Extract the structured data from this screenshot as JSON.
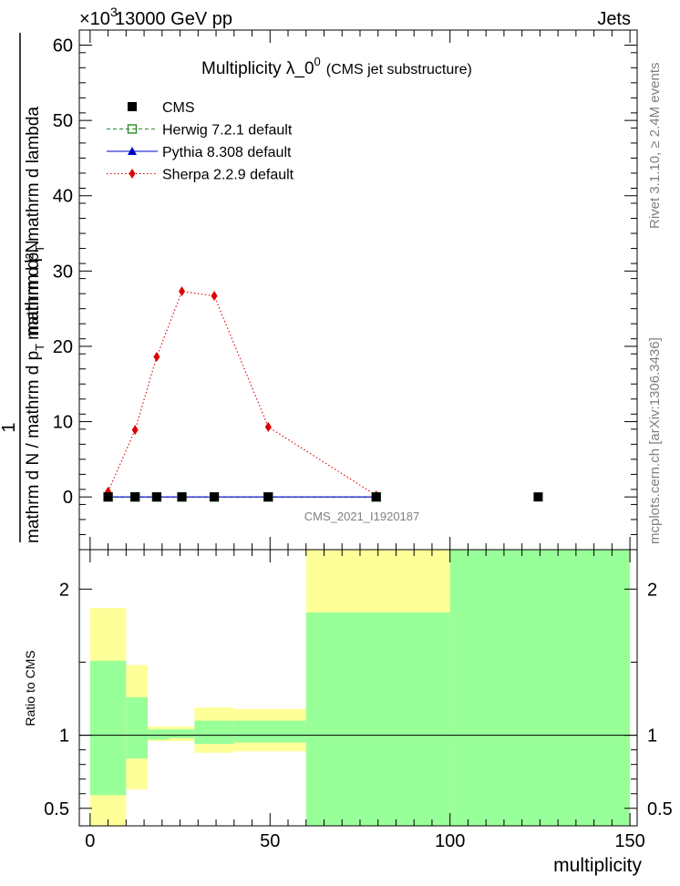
{
  "header": {
    "left": "13000 GeV pp",
    "right": "Jets",
    "exponent": "×10",
    "exponent_power": "3"
  },
  "side_labels": {
    "rivet": "Rivet 3.1.10, ≥ 2.4M events",
    "mcplots": "mcplots.cern.ch [arXiv:1306.3436]"
  },
  "watermark": "CMS_2021_I1920187",
  "chart_data": [
    {
      "type": "line",
      "title": "Multiplicity  λ_0",
      "title_sup": "0",
      "subtitle": "(CMS jet substructure)",
      "ylabel_numerator": "1",
      "ylabel_denominator": "mathrm d N / mathrm d p",
      "ylabel_denominator_sub": "T",
      "ylabel_numerator2": "mathrm d²N",
      "ylabel_denominator2": "mathrm d p",
      "ylabel_denominator2_sub": "T",
      "ylabel_denominator2_tail": "mathrm d lambda",
      "xlim": [
        -3,
        152
      ],
      "ylim": [
        -7,
        62
      ],
      "y_exponent": 3,
      "yticks": [
        0,
        10,
        20,
        30,
        40,
        50,
        60
      ],
      "legend_position": "top-left",
      "series": [
        {
          "name": "CMS",
          "color": "#000000",
          "marker": "square",
          "x": [
            5,
            12.5,
            18.5,
            25.5,
            34.5,
            49.5,
            79.5,
            124.5
          ],
          "y": [
            0,
            0,
            0,
            0,
            0,
            0,
            0,
            0
          ]
        },
        {
          "name": "Herwig 7.2.1 default",
          "color": "#2a8a2a",
          "marker": "open-square",
          "line": "dashed",
          "x": [
            5,
            12.5,
            18.5,
            25.5,
            34.5,
            49.5,
            79.5
          ],
          "y": [
            0,
            0,
            0,
            0,
            0,
            0,
            0
          ]
        },
        {
          "name": "Pythia 8.308 default",
          "color": "#0000cc",
          "marker": "triangle",
          "line": "solid",
          "x": [
            5,
            12.5,
            18.5,
            25.5,
            34.5,
            49.5,
            79.5
          ],
          "y": [
            0,
            0,
            0,
            0,
            0,
            0,
            0
          ]
        },
        {
          "name": "Sherpa 2.2.9 default",
          "color": "#dd0000",
          "marker": "diamond",
          "line": "dotted",
          "x": [
            5,
            12.5,
            18.5,
            25.5,
            34.5,
            49.5,
            79.5
          ],
          "y": [
            0.7,
            8.9,
            18.6,
            27.3,
            26.7,
            9.3,
            0.2
          ]
        }
      ]
    },
    {
      "type": "area",
      "ylabel": "Ratio to CMS",
      "xlabel": "multiplicity",
      "xlim": [
        -3,
        152
      ],
      "ylim": [
        0.38,
        2.27
      ],
      "xticks": [
        0,
        50,
        100,
        150
      ],
      "yticks": [
        0.5,
        1,
        2
      ],
      "reference_line": 1,
      "bands": [
        {
          "x0": 0,
          "x1": 10,
          "yellow": [
            0.38,
            1.87
          ],
          "green": [
            0.59,
            1.51
          ]
        },
        {
          "x0": 10,
          "x1": 16,
          "yellow": [
            0.63,
            1.48
          ],
          "green": [
            0.84,
            1.26
          ]
        },
        {
          "x0": 16,
          "x1": 22,
          "yellow": [
            0.96,
            1.06
          ],
          "green": [
            0.97,
            1.04
          ]
        },
        {
          "x0": 22,
          "x1": 29,
          "yellow": [
            0.96,
            1.06
          ],
          "green": [
            0.98,
            1.04
          ]
        },
        {
          "x0": 29,
          "x1": 40,
          "yellow": [
            0.88,
            1.19
          ],
          "green": [
            0.94,
            1.1
          ]
        },
        {
          "x0": 40,
          "x1": 60,
          "yellow": [
            0.89,
            1.18
          ],
          "green": [
            0.95,
            1.1
          ]
        },
        {
          "x0": 60,
          "x1": 100,
          "yellow": [
            0.38,
            2.27
          ],
          "green": [
            0.38,
            1.84
          ]
        },
        {
          "x0": 100,
          "x1": 150,
          "yellow": [
            0.38,
            2.27
          ],
          "green": [
            0.38,
            2.27
          ]
        }
      ]
    }
  ]
}
